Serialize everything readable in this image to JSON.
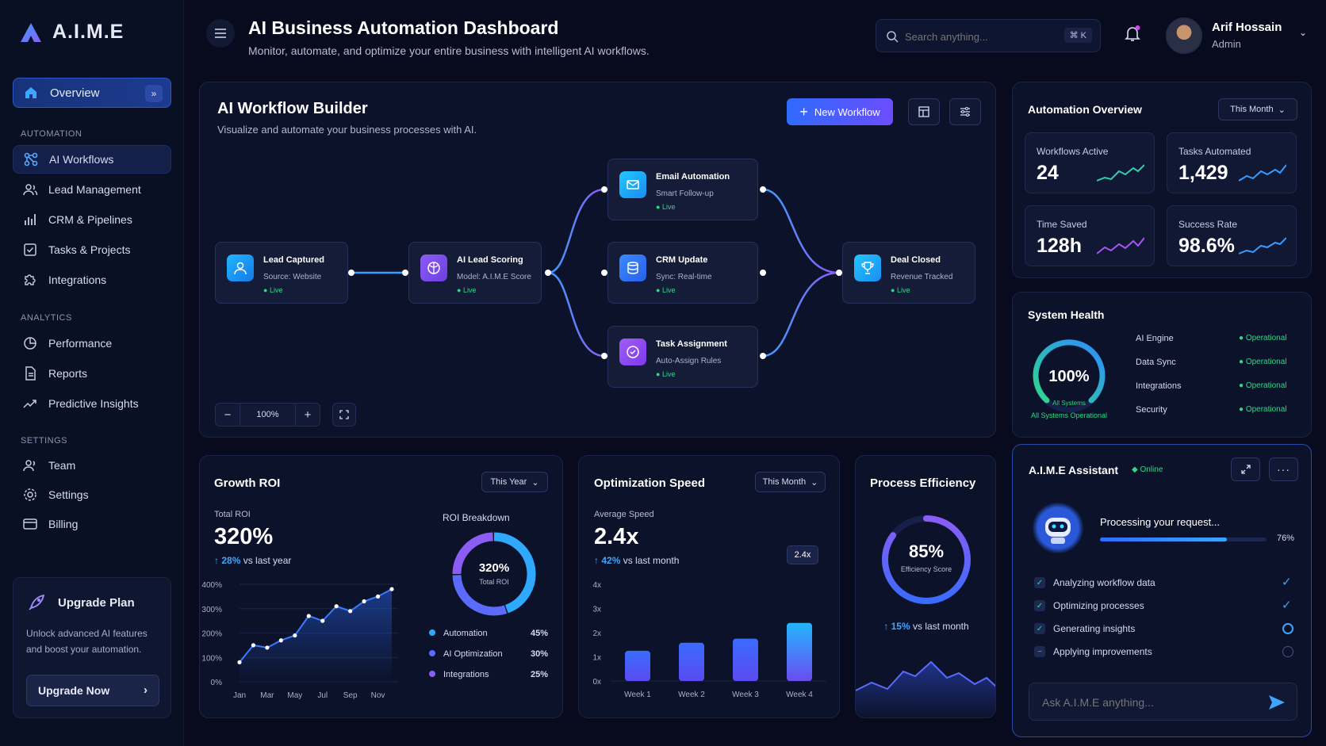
{
  "app": {
    "logo": "A.I.M.E"
  },
  "sidebar": {
    "overview": "Overview",
    "automation_title": "AUTOMATION",
    "automation": [
      "AI Workflows",
      "Lead Management",
      "CRM & Pipelines",
      "Tasks & Projects",
      "Integrations"
    ],
    "analytics_title": "ANALYTICS",
    "analytics": [
      "Performance",
      "Reports",
      "Predictive Insights"
    ],
    "settings_title": "SETTINGS",
    "settings": [
      "Team",
      "Settings",
      "Billing"
    ],
    "upgrade": {
      "title": "Upgrade Plan",
      "text1": "Unlock advanced AI features",
      "text2": "and boost your automation.",
      "button": "Upgrade Now"
    }
  },
  "header": {
    "title": "AI Business Automation Dashboard",
    "subtitle": "Monitor, automate, and optimize your entire business with intelligent AI workflows.",
    "search_placeholder": "Search anything...",
    "shortcut": "⌘ K",
    "user_name": "Arif Hossain",
    "user_role": "Admin"
  },
  "workflow": {
    "title": "AI Workflow Builder",
    "subtitle": "Visualize and automate your business processes with AI.",
    "new_button": "New Workflow",
    "zoom": "100%",
    "nodes": [
      {
        "title": "Lead Captured",
        "sub": "Source: Website",
        "status": "Live"
      },
      {
        "title": "AI Lead Scoring",
        "sub": "Model: A.I.M.E Score",
        "status": "Live"
      },
      {
        "title": "Email Automation",
        "sub": "Smart Follow-up",
        "status": "Live"
      },
      {
        "title": "CRM Update",
        "sub": "Sync: Real-time",
        "status": "Live"
      },
      {
        "title": "Task Assignment",
        "sub": "Auto-Assign Rules",
        "status": "Live"
      },
      {
        "title": "Deal Closed",
        "sub": "Revenue Tracked",
        "status": "Live"
      }
    ]
  },
  "overview": {
    "title": "Automation Overview",
    "period": "This Month",
    "stats": [
      {
        "label": "Workflows Active",
        "value": "24"
      },
      {
        "label": "Tasks Automated",
        "value": "1,429"
      },
      {
        "label": "Time Saved",
        "value": "128h"
      },
      {
        "label": "Success Rate",
        "value": "98.6%"
      }
    ]
  },
  "health": {
    "title": "System Health",
    "value": "100%",
    "gauge_label": "All Systems",
    "caption": "All Systems Operational",
    "rows": [
      {
        "name": "AI Engine",
        "status": "Operational"
      },
      {
        "name": "Data Sync",
        "status": "Operational"
      },
      {
        "name": "Integrations",
        "status": "Operational"
      },
      {
        "name": "Security",
        "status": "Operational"
      }
    ]
  },
  "growth": {
    "title": "Growth ROI",
    "period": "This Year",
    "total_label": "Total ROI",
    "total": "320%",
    "change": "28%",
    "change_text": "vs last year",
    "breakdown_title": "ROI Breakdown",
    "donut_value": "320%",
    "donut_label": "Total ROI",
    "breakdown": [
      {
        "name": "Automation",
        "pct": "45%",
        "color": "#2fa8ff"
      },
      {
        "name": "AI Optimization",
        "pct": "30%",
        "color": "#5b6bff"
      },
      {
        "name": "Integrations",
        "pct": "25%",
        "color": "#8b5cf6"
      }
    ]
  },
  "speed": {
    "title": "Optimization Speed",
    "period": "This Month",
    "label": "Average Speed",
    "value": "2.4x",
    "change": "42%",
    "change_text": "vs last month",
    "tooltip": "2.4x"
  },
  "efficiency": {
    "title": "Process Efficiency",
    "value": "85%",
    "label": "Efficiency Score",
    "change": "15%",
    "change_text": "vs last month"
  },
  "assistant": {
    "title": "A.I.M.E Assistant",
    "status": "Online",
    "processing": "Processing your request...",
    "progress": "76%",
    "tasks": [
      "Analyzing workflow data",
      "Optimizing processes",
      "Generating insights",
      "Applying improvements"
    ],
    "input_placeholder": "Ask A.I.M.E anything..."
  },
  "chart_data": [
    {
      "type": "area",
      "title": "Growth ROI",
      "x": [
        "Jan",
        "",
        "Mar",
        "",
        "May",
        "",
        "Jul",
        "",
        "Sep",
        "",
        "Nov",
        ""
      ],
      "xticks": [
        "Jan",
        "Mar",
        "May",
        "Jul",
        "Sep",
        "Nov"
      ],
      "yticks": [
        "0%",
        "100%",
        "200%",
        "300%",
        "400%"
      ],
      "values": [
        80,
        150,
        140,
        170,
        190,
        270,
        250,
        310,
        290,
        330,
        350,
        380
      ],
      "ylim": [
        0,
        400
      ]
    },
    {
      "type": "bar",
      "title": "Optimization Speed",
      "categories": [
        "Week 1",
        "Week 2",
        "Week 3",
        "Week 4"
      ],
      "values": [
        1.25,
        1.58,
        1.75,
        2.4
      ],
      "yticks": [
        "0x",
        "1x",
        "2x",
        "3x",
        "4x"
      ],
      "ylim": [
        0,
        4
      ]
    },
    {
      "type": "pie",
      "title": "ROI Breakdown",
      "categories": [
        "Automation",
        "AI Optimization",
        "Integrations"
      ],
      "values": [
        45,
        30,
        25
      ]
    }
  ]
}
